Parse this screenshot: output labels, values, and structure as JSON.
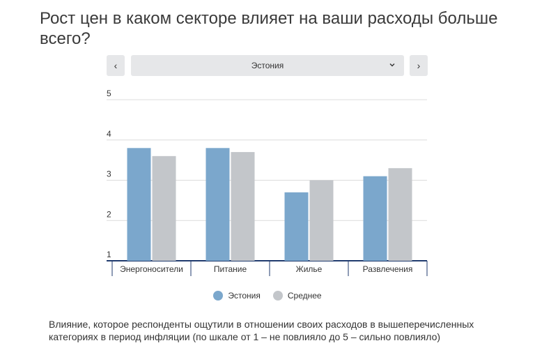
{
  "title": "Рост цен в каком секторе влияет на ваши расходы больше всего?",
  "controls": {
    "prev_icon": "‹",
    "next_icon": "›",
    "selected_country": "Эстония"
  },
  "chart_data": {
    "type": "bar",
    "categories": [
      "Энергоносители",
      "Питание",
      "Жилье",
      "Развлечения"
    ],
    "series": [
      {
        "name": "Эстония",
        "values": [
          3.8,
          3.8,
          2.7,
          3.1
        ]
      },
      {
        "name": "Среднее",
        "values": [
          3.6,
          3.7,
          3.0,
          3.3
        ]
      }
    ],
    "ylim": [
      1,
      5
    ],
    "yticks": [
      "1",
      "2",
      "3",
      "4",
      "5"
    ],
    "colors": [
      "#7ba7cc",
      "#c3c6ca"
    ],
    "grid": true,
    "legend": "bottom"
  },
  "caption": "Влияние, которое респонденты ощутили в отношении своих расходов в вышеперечисленных категориях в период инфляции (по шкале от 1 – не повлияло до 5 – сильно повлияло)"
}
